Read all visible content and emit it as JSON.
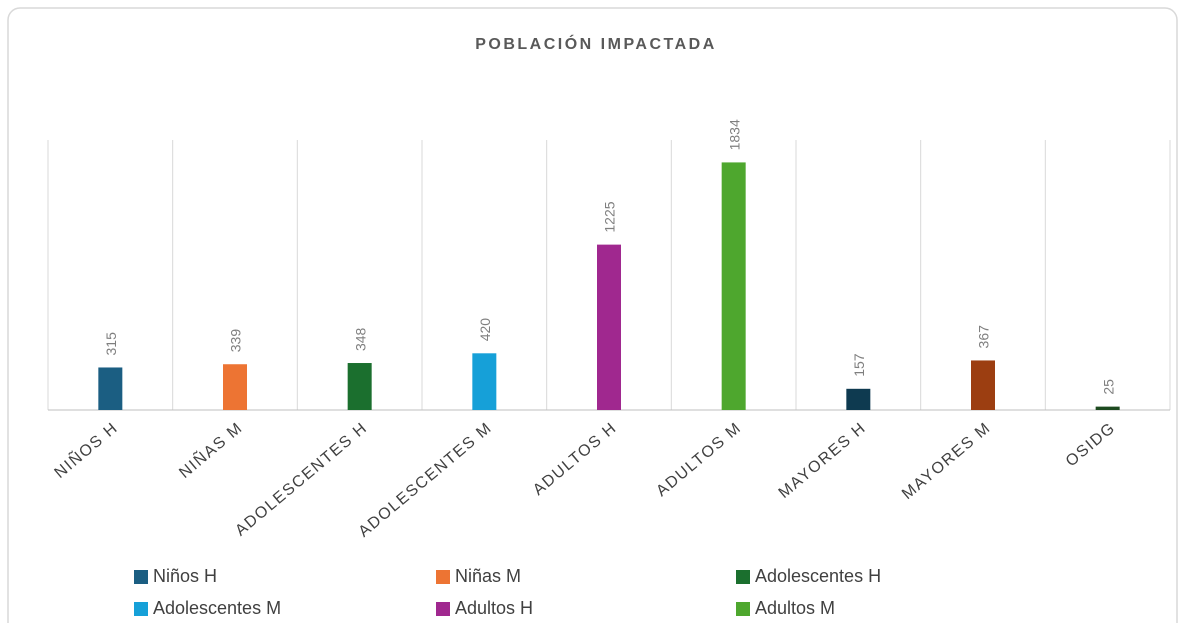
{
  "chart_data": {
    "type": "bar",
    "title": "POBLACIÓN IMPACTADA",
    "categories": [
      "NIÑOS H",
      "NIÑAS M",
      "ADOLESCENTES H",
      "ADOLESCENTES M",
      "ADULTOS H",
      "ADULTOS M",
      "MAYORES H",
      "MAYORES M",
      "OSIDG"
    ],
    "values": [
      315,
      339,
      348,
      420,
      1225,
      1834,
      157,
      367,
      25
    ],
    "colors": [
      "#1b5e82",
      "#ed7433",
      "#1b6f2e",
      "#16a0d8",
      "#a0288f",
      "#4ea72e",
      "#0e3a50",
      "#9c3e11",
      "#1d4a1f"
    ],
    "legend": [
      "Niños H",
      "Niñas M",
      "Adolescentes H",
      "Adolescentes M",
      "Adultos H",
      "Adultos M"
    ],
    "ylim": [
      0,
      2000
    ]
  }
}
